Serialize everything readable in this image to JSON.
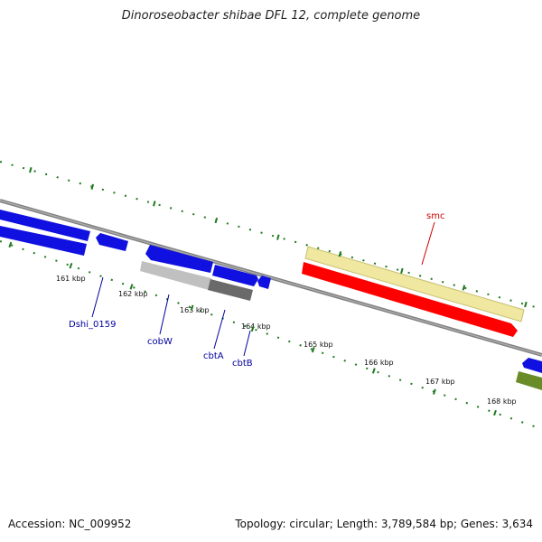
{
  "title": "Dinoroseobacter shibae DFL 12, complete genome",
  "footer": {
    "accession": "Accession: NC_009952",
    "stats": "Topology: circular; Length: 3,789,584 bp; Genes: 3,634"
  },
  "tick_labels": [
    "161 kbp",
    "162 kbp",
    "163 kbp",
    "164 kbp",
    "165 kbp",
    "166 kbp",
    "167 kbp",
    "168 kbp"
  ],
  "gene_labels": [
    {
      "name": "Dshi_0159",
      "color": "#0000a0"
    },
    {
      "name": "cobW",
      "color": "#0000a0"
    },
    {
      "name": "cbtA",
      "color": "#0000a0"
    },
    {
      "name": "cbtB",
      "color": "#0000a0"
    },
    {
      "name": "smc",
      "color": "#cc0000"
    }
  ],
  "colors": {
    "cds_blue": "#1010e0",
    "smc_red": "#ff0000",
    "smc_feature_yellow": "#f0e8a0",
    "gray_feature": "#c0c0c0",
    "dark_gray_feature": "#6a6a6a",
    "olive_feature": "#6a8c28",
    "backbone": "#808080",
    "tick_green": "#1f7a1f"
  }
}
